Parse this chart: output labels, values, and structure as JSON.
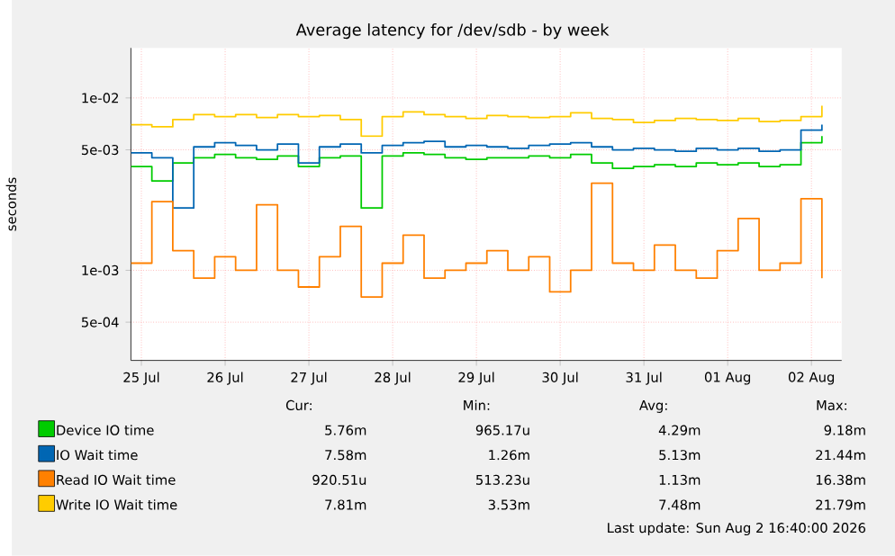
{
  "chart_data": {
    "type": "step",
    "title": "Average latency for /dev/sdb - by week",
    "ylabel": "seconds",
    "log": "y",
    "grid": true,
    "legend": "bottom",
    "xlim": [
      "2026-07-25T09:00",
      "2026-08-02T20:40"
    ],
    "xticks": [
      {
        "value": "2026-07-25T12:00",
        "label": "25 Jul"
      },
      {
        "value": "2026-07-26T12:00",
        "label": "26 Jul"
      },
      {
        "value": "2026-07-27T12:00",
        "label": "27 Jul"
      },
      {
        "value": "2026-07-28T12:00",
        "label": "28 Jul"
      },
      {
        "value": "2026-07-29T12:00",
        "label": "29 Jul"
      },
      {
        "value": "2026-07-30T12:00",
        "label": "30 Jul"
      },
      {
        "value": "2026-07-31T12:00",
        "label": "31 Jul"
      },
      {
        "value": "2026-08-01T12:00",
        "label": "01 Aug"
      },
      {
        "value": "2026-08-02T12:00",
        "label": "02 Aug"
      }
    ],
    "ylim": [
      0.0003,
      0.0195
    ],
    "yticks": [
      {
        "value": 0.0005,
        "label": "5e-04"
      },
      {
        "value": 0.001,
        "label": "1e-03"
      },
      {
        "value": 0.005,
        "label": "5e-03"
      },
      {
        "value": 0.01,
        "label": "1e-02"
      }
    ],
    "x": [
      "2026-07-25T09:00",
      "2026-07-25T15:00",
      "2026-07-25T21:00",
      "2026-07-26T03:00",
      "2026-07-26T09:00",
      "2026-07-26T15:00",
      "2026-07-26T21:00",
      "2026-07-27T03:00",
      "2026-07-27T09:00",
      "2026-07-27T15:00",
      "2026-07-27T21:00",
      "2026-07-28T03:00",
      "2026-07-28T09:00",
      "2026-07-28T15:00",
      "2026-07-28T21:00",
      "2026-07-29T03:00",
      "2026-07-29T09:00",
      "2026-07-29T15:00",
      "2026-07-29T21:00",
      "2026-07-30T03:00",
      "2026-07-30T09:00",
      "2026-07-30T15:00",
      "2026-07-30T21:00",
      "2026-07-31T03:00",
      "2026-07-31T09:00",
      "2026-07-31T15:00",
      "2026-07-31T21:00",
      "2026-08-01T03:00",
      "2026-08-01T09:00",
      "2026-08-01T15:00",
      "2026-08-01T21:00",
      "2026-08-02T03:00",
      "2026-08-02T09:00",
      "2026-08-02T15:00"
    ],
    "series": [
      {
        "name": "Device IO time",
        "color": "#00cc00",
        "values": [
          0.004,
          0.0033,
          0.0042,
          0.0045,
          0.0047,
          0.0045,
          0.0044,
          0.0046,
          0.004,
          0.0045,
          0.0046,
          0.0023,
          0.0046,
          0.0048,
          0.0047,
          0.0045,
          0.0044,
          0.0045,
          0.0045,
          0.0046,
          0.0045,
          0.0047,
          0.0042,
          0.0039,
          0.004,
          0.0041,
          0.004,
          0.0042,
          0.0041,
          0.0042,
          0.004,
          0.0041,
          0.0055,
          0.006
        ]
      },
      {
        "name": "IO Wait time",
        "color": "#0066b3",
        "values": [
          0.0048,
          0.0045,
          0.0023,
          0.0052,
          0.0055,
          0.0053,
          0.005,
          0.0054,
          0.0042,
          0.0052,
          0.0054,
          0.0048,
          0.0053,
          0.0055,
          0.0056,
          0.0052,
          0.0053,
          0.0052,
          0.0051,
          0.0053,
          0.0054,
          0.0055,
          0.0052,
          0.005,
          0.0051,
          0.005,
          0.0049,
          0.0051,
          0.005,
          0.0051,
          0.0049,
          0.005,
          0.0065,
          0.007
        ]
      },
      {
        "name": "Read IO Wait time",
        "color": "#ff8000",
        "values": [
          0.0011,
          0.0025,
          0.0013,
          0.0009,
          0.0012,
          0.001,
          0.0024,
          0.001,
          0.0008,
          0.0012,
          0.0018,
          0.0007,
          0.0011,
          0.0016,
          0.0009,
          0.001,
          0.0011,
          0.0013,
          0.001,
          0.0012,
          0.00075,
          0.001,
          0.0032,
          0.0011,
          0.001,
          0.0014,
          0.001,
          0.0009,
          0.0013,
          0.002,
          0.001,
          0.0011,
          0.0026,
          0.0009
        ]
      },
      {
        "name": "Write IO Wait time",
        "color": "#ffcc00",
        "values": [
          0.007,
          0.0068,
          0.0075,
          0.008,
          0.0078,
          0.008,
          0.0077,
          0.008,
          0.0078,
          0.0079,
          0.0075,
          0.006,
          0.0078,
          0.0083,
          0.008,
          0.0078,
          0.0076,
          0.0079,
          0.0078,
          0.0077,
          0.0078,
          0.0082,
          0.0076,
          0.0075,
          0.0072,
          0.0074,
          0.0076,
          0.0075,
          0.0074,
          0.0076,
          0.0073,
          0.0074,
          0.0078,
          0.009
        ]
      }
    ],
    "annotations": [
      "Cur:",
      "Min:",
      "Avg:",
      "Max:",
      "5.76m",
      "965.17u",
      "4.29m",
      "9.18m",
      "7.58m",
      "1.26m",
      "5.13m",
      "21.44m",
      "920.51u",
      "513.23u",
      "1.13m",
      "16.38m",
      "7.81m",
      "3.53m",
      "7.48m",
      "21.79m",
      "Last update: Sun Aug  2 16:40:00 2026"
    ]
  }
}
